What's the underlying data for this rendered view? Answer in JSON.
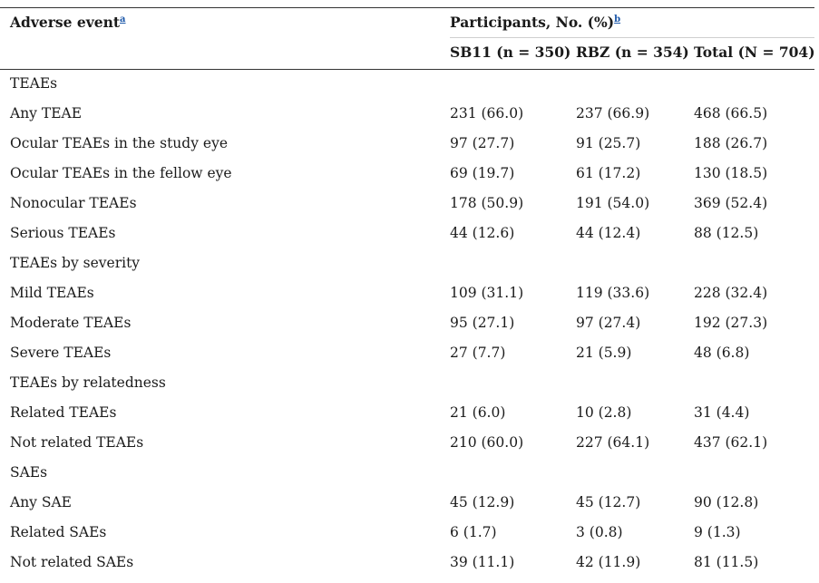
{
  "header": {
    "col0_label": "Adverse event",
    "col0_footnote": "a",
    "group_label": "Participants, No. (%)",
    "group_footnote": "b",
    "sub_headers": [
      "SB11 (n = 350)",
      "RBZ (n = 354)",
      "Total (N = 704)"
    ]
  },
  "rows": [
    {
      "label": "TEAEs",
      "v1": "",
      "v2": "",
      "v3": ""
    },
    {
      "label": "Any TEAE",
      "v1": "231 (66.0)",
      "v2": "237 (66.9)",
      "v3": "468 (66.5)"
    },
    {
      "label": "Ocular TEAEs in the study eye",
      "v1": "97 (27.7)",
      "v2": "91 (25.7)",
      "v3": "188 (26.7)"
    },
    {
      "label": "Ocular TEAEs in the fellow eye",
      "v1": "69 (19.7)",
      "v2": "61 (17.2)",
      "v3": "130 (18.5)"
    },
    {
      "label": "Nonocular TEAEs",
      "v1": "178 (50.9)",
      "v2": "191 (54.0)",
      "v3": "369 (52.4)"
    },
    {
      "label": "Serious TEAEs",
      "v1": "44 (12.6)",
      "v2": "44 (12.4)",
      "v3": "88 (12.5)"
    },
    {
      "label": "TEAEs by severity",
      "v1": "",
      "v2": "",
      "v3": ""
    },
    {
      "label": "Mild TEAEs",
      "v1": "109 (31.1)",
      "v2": "119 (33.6)",
      "v3": "228 (32.4)"
    },
    {
      "label": "Moderate TEAEs",
      "v1": "95 (27.1)",
      "v2": "97 (27.4)",
      "v3": "192 (27.3)"
    },
    {
      "label": "Severe TEAEs",
      "v1": "27 (7.7)",
      "v2": "21 (5.9)",
      "v3": "48 (6.8)"
    },
    {
      "label": "TEAEs by relatedness",
      "v1": "",
      "v2": "",
      "v3": ""
    },
    {
      "label": "Related TEAEs",
      "v1": "21 (6.0)",
      "v2": "10 (2.8)",
      "v3": "31 (4.4)"
    },
    {
      "label": "Not related TEAEs",
      "v1": "210 (60.0)",
      "v2": "227 (64.1)",
      "v3": "437 (62.1)"
    },
    {
      "label": "SAEs",
      "v1": "",
      "v2": "",
      "v3": ""
    },
    {
      "label": "Any SAE",
      "v1": "45 (12.9)",
      "v2": "45 (12.7)",
      "v3": "90 (12.8)"
    },
    {
      "label": "Related SAEs",
      "v1": "6 (1.7)",
      "v2": "3 (0.8)",
      "v3": "9 (1.3)"
    },
    {
      "label": "Not related SAEs",
      "v1": "39 (11.1)",
      "v2": "42 (11.9)",
      "v3": "81 (11.5)"
    }
  ]
}
